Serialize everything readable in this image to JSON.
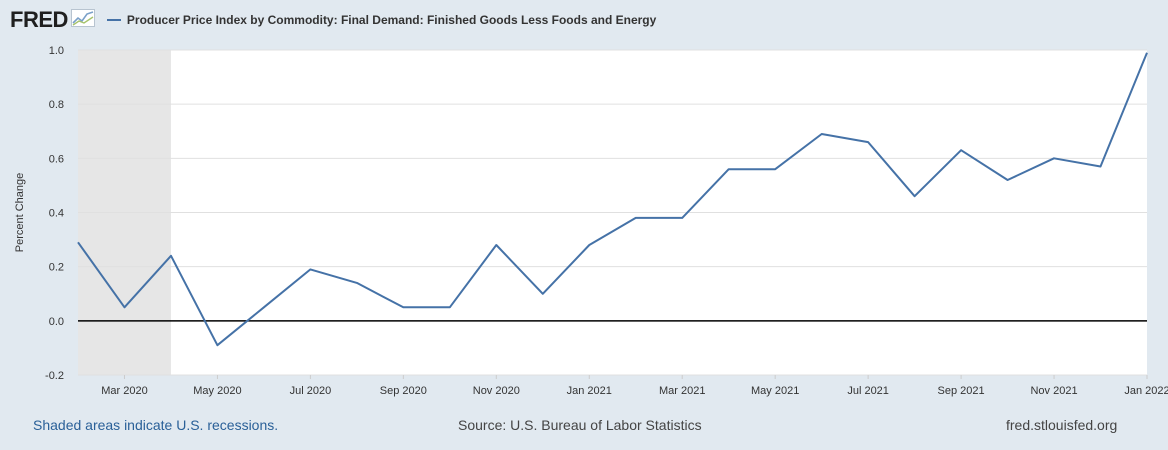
{
  "header": {
    "logo": "FRED",
    "logo_icon": "line-chart-icon",
    "title": "Producer Price Index by Commodity: Final Demand: Finished Goods Less Foods and Energy"
  },
  "footer": {
    "recession_note": "Shaded areas indicate U.S. recessions.",
    "source": "Source: U.S. Bureau of Labor Statistics",
    "site": "fred.stlouisfed.org"
  },
  "chart_data": {
    "type": "line",
    "title": "Producer Price Index by Commodity: Final Demand: Finished Goods Less Foods and Energy",
    "ylabel": "Percent Change",
    "xlabel": "",
    "ylim": [
      -0.2,
      1.0
    ],
    "yticks": [
      "1.0",
      "0.8",
      "0.6",
      "0.4",
      "0.2",
      "0.0",
      "-0.2"
    ],
    "xticks": [
      "Mar 2020",
      "May 2020",
      "Jul 2020",
      "Sep 2020",
      "Nov 2020",
      "Jan 2021",
      "Mar 2021",
      "May 2021",
      "Jul 2021",
      "Sep 2021",
      "Nov 2021",
      "Jan 2022"
    ],
    "recession": {
      "start": "2020-02",
      "end": "2020-04"
    },
    "series": [
      {
        "color": "#4572a7",
        "x": [
          "2020-02",
          "2020-03",
          "2020-04",
          "2020-05",
          "2020-06",
          "2020-07",
          "2020-08",
          "2020-09",
          "2020-10",
          "2020-11",
          "2020-12",
          "2021-01",
          "2021-02",
          "2021-03",
          "2021-04",
          "2021-05",
          "2021-06",
          "2021-07",
          "2021-08",
          "2021-09",
          "2021-10",
          "2021-11",
          "2021-12",
          "2022-01"
        ],
        "values": [
          0.29,
          0.05,
          0.24,
          -0.09,
          0.05,
          0.19,
          0.14,
          0.05,
          0.05,
          0.28,
          0.1,
          0.28,
          0.38,
          0.38,
          0.56,
          0.56,
          0.69,
          0.66,
          0.46,
          0.63,
          0.52,
          0.6,
          0.57,
          0.99
        ]
      }
    ],
    "grid": true,
    "zero_line": true
  }
}
